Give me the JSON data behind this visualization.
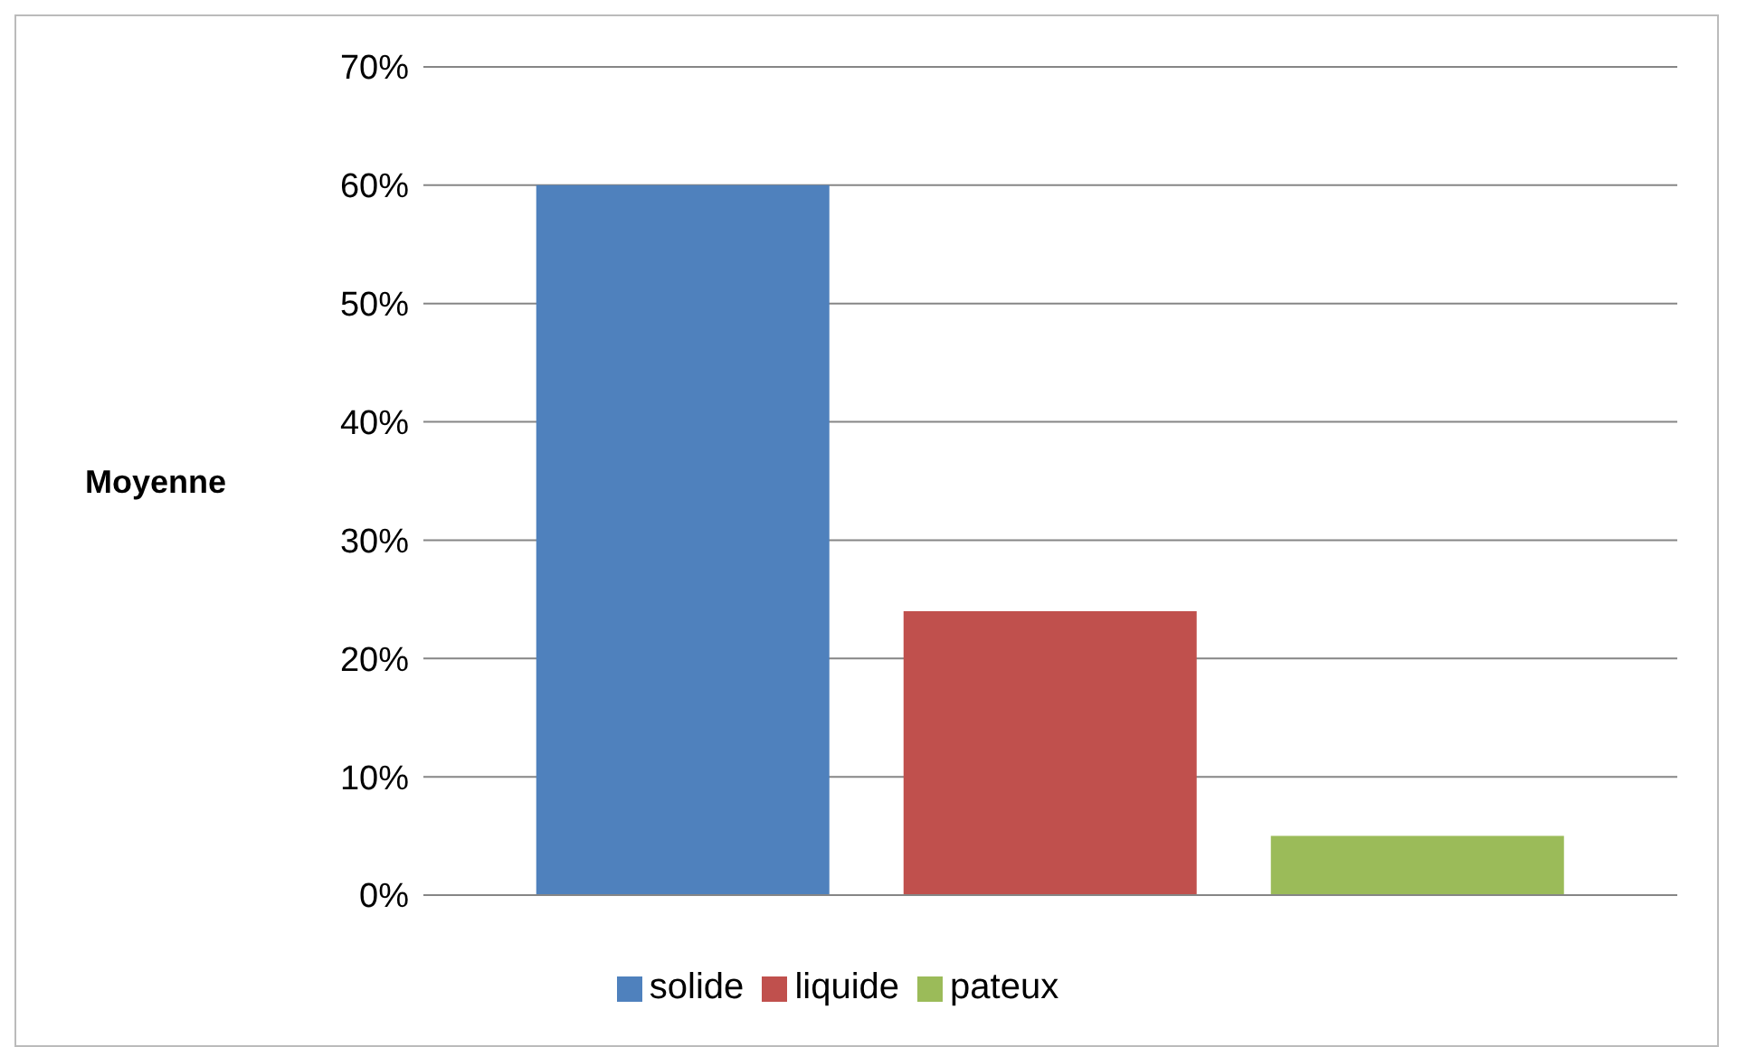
{
  "chart_data": {
    "type": "bar",
    "ylabel": "Moyenne",
    "categories": [
      null
    ],
    "series": [
      {
        "name": "solide",
        "color": "#4f81bd",
        "values": [
          60
        ]
      },
      {
        "name": "liquide",
        "color": "#c0504d",
        "values": [
          24
        ]
      },
      {
        "name": "pateux",
        "color": "#9bbb59",
        "values": [
          5
        ]
      }
    ],
    "ylim": [
      0,
      70
    ],
    "yticks": [
      {
        "value": 0,
        "label": "0%"
      },
      {
        "value": 10,
        "label": "10%"
      },
      {
        "value": 20,
        "label": "20%"
      },
      {
        "value": 30,
        "label": "30%"
      },
      {
        "value": 40,
        "label": "40%"
      },
      {
        "value": 50,
        "label": "50%"
      },
      {
        "value": 60,
        "label": "60%"
      },
      {
        "value": 70,
        "label": "70%"
      }
    ],
    "grid": "y",
    "legend": "bottom",
    "tick_labels": "y"
  }
}
